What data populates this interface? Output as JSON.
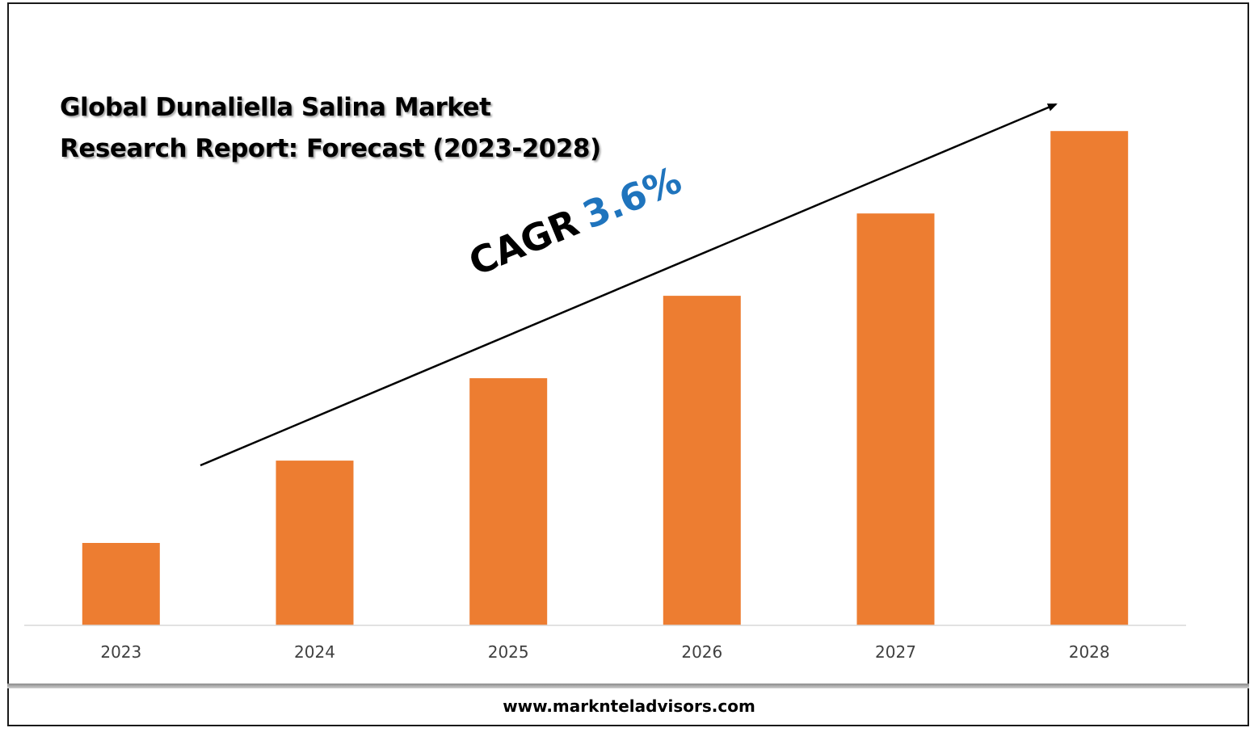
{
  "title": {
    "line1": "Global Dunaliella Salina Market",
    "line2": "Research Report: Forecast (2023-2028)"
  },
  "annotation": {
    "label": "CAGR",
    "value": "3.6%"
  },
  "footer": {
    "website": "www.marknteladvisors.com"
  },
  "colors": {
    "bar": "#ed7d31",
    "cagr_value": "#1f74bd",
    "axis": "#d9d9d9",
    "tick_label": "#404040"
  },
  "chart_data": {
    "type": "bar",
    "categories": [
      "2023",
      "2024",
      "2025",
      "2026",
      "2027",
      "2028"
    ],
    "values": [
      1.0,
      2.0,
      3.0,
      4.0,
      5.0,
      6.0
    ],
    "xlabel": "",
    "ylabel": "",
    "ylim": [
      0,
      6.6
    ],
    "grid": false,
    "legend": "none",
    "trend_arrow": true
  }
}
